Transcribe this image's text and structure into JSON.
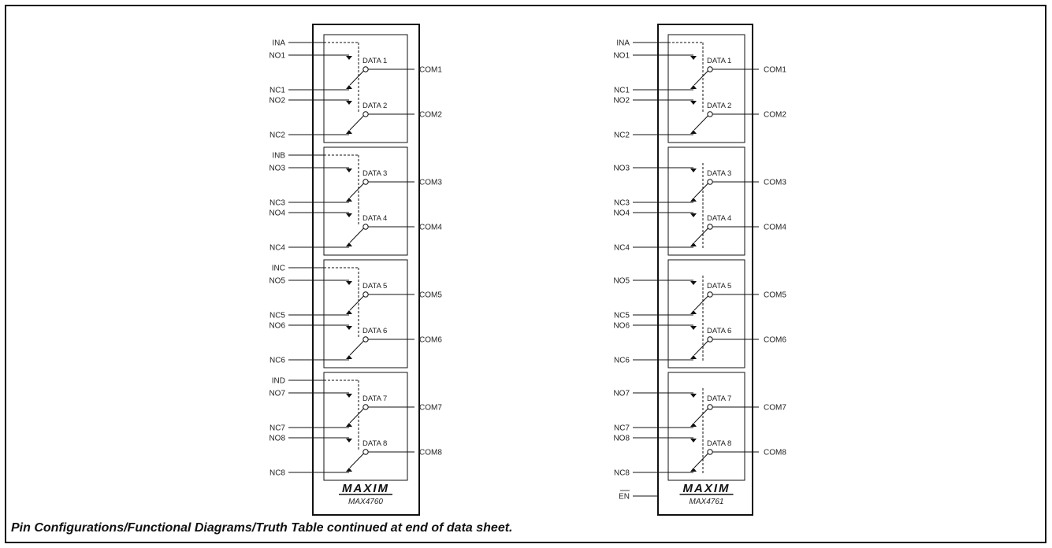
{
  "chips": [
    {
      "part": "MAX4760",
      "logo": "MAXIM",
      "groups": [
        {
          "control": "INA",
          "channels": [
            {
              "no": "NO1",
              "data": "DATA 1",
              "com": "COM1",
              "nc": "NC1"
            },
            {
              "no": "NO2",
              "data": "DATA 2",
              "com": "COM2",
              "nc": "NC2"
            }
          ]
        },
        {
          "control": "INB",
          "channels": [
            {
              "no": "NO3",
              "data": "DATA 3",
              "com": "COM3",
              "nc": "NC3"
            },
            {
              "no": "NO4",
              "data": "DATA 4",
              "com": "COM4",
              "nc": "NC4"
            }
          ]
        },
        {
          "control": "INC",
          "channels": [
            {
              "no": "NO5",
              "data": "DATA 5",
              "com": "COM5",
              "nc": "NC5"
            },
            {
              "no": "NO6",
              "data": "DATA 6",
              "com": "COM6",
              "nc": "NC6"
            }
          ]
        },
        {
          "control": "IND",
          "channels": [
            {
              "no": "NO7",
              "data": "DATA 7",
              "com": "COM7",
              "nc": "NC7"
            },
            {
              "no": "NO8",
              "data": "DATA 8",
              "com": "COM8",
              "nc": "NC8"
            }
          ]
        }
      ],
      "enable": ""
    },
    {
      "part": "MAX4761",
      "logo": "MAXIM",
      "groups": [
        {
          "control": "INA",
          "channels": [
            {
              "no": "NO1",
              "data": "DATA 1",
              "com": "COM1",
              "nc": "NC1"
            },
            {
              "no": "NO2",
              "data": "DATA 2",
              "com": "COM2",
              "nc": "NC2"
            }
          ]
        },
        {
          "control": "",
          "channels": [
            {
              "no": "NO3",
              "data": "DATA 3",
              "com": "COM3",
              "nc": "NC3"
            },
            {
              "no": "NO4",
              "data": "DATA 4",
              "com": "COM4",
              "nc": "NC4"
            }
          ]
        },
        {
          "control": "",
          "channels": [
            {
              "no": "NO5",
              "data": "DATA 5",
              "com": "COM5",
              "nc": "NC5"
            },
            {
              "no": "NO6",
              "data": "DATA 6",
              "com": "COM6",
              "nc": "NC6"
            }
          ]
        },
        {
          "control": "",
          "channels": [
            {
              "no": "NO7",
              "data": "DATA 7",
              "com": "COM7",
              "nc": "NC7"
            },
            {
              "no": "NO8",
              "data": "DATA 8",
              "com": "COM8",
              "nc": "NC8"
            }
          ]
        }
      ],
      "enable": "EN"
    }
  ],
  "footer": "Pin Configurations/Functional Diagrams/Truth Table continued at end of data sheet."
}
